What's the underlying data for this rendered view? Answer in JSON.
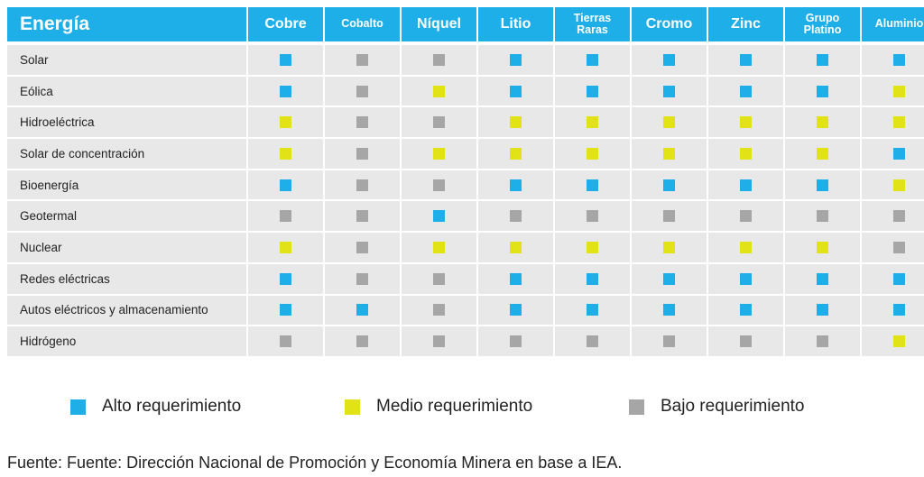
{
  "table": {
    "headers": [
      "Energía",
      "Cobre",
      "Cobalto",
      "Níquel",
      "Litio",
      "Tierras\nRaras",
      "Cromo",
      "Zinc",
      "Grupo\nPlatino",
      "Aluminio"
    ],
    "rows": [
      {
        "label": "Solar",
        "levels": [
          "alto",
          "bajo",
          "bajo",
          "alto",
          "alto",
          "alto",
          "alto",
          "alto",
          "alto"
        ]
      },
      {
        "label": "Eólica",
        "levels": [
          "alto",
          "bajo",
          "medio",
          "alto",
          "alto",
          "alto",
          "alto",
          "alto",
          "medio"
        ]
      },
      {
        "label": "Hidroeléctrica",
        "levels": [
          "medio",
          "bajo",
          "bajo",
          "medio",
          "medio",
          "medio",
          "medio",
          "medio",
          "medio"
        ]
      },
      {
        "label": "Solar de concentración",
        "levels": [
          "medio",
          "bajo",
          "medio",
          "medio",
          "medio",
          "medio",
          "medio",
          "medio",
          "alto"
        ]
      },
      {
        "label": "Bioenergía",
        "levels": [
          "alto",
          "bajo",
          "bajo",
          "alto",
          "alto",
          "alto",
          "alto",
          "alto",
          "medio"
        ]
      },
      {
        "label": "Geotermal",
        "levels": [
          "bajo",
          "bajo",
          "alto",
          "bajo",
          "bajo",
          "bajo",
          "bajo",
          "bajo",
          "bajo"
        ]
      },
      {
        "label": "Nuclear",
        "levels": [
          "medio",
          "bajo",
          "medio",
          "medio",
          "medio",
          "medio",
          "medio",
          "medio",
          "bajo"
        ]
      },
      {
        "label": "Redes eléctricas",
        "levels": [
          "alto",
          "bajo",
          "bajo",
          "alto",
          "alto",
          "alto",
          "alto",
          "alto",
          "alto"
        ]
      },
      {
        "label": "Autos eléctricos y almacenamiento",
        "levels": [
          "alto",
          "alto",
          "bajo",
          "alto",
          "alto",
          "alto",
          "alto",
          "alto",
          "alto"
        ]
      },
      {
        "label": "Hidrógeno",
        "levels": [
          "bajo",
          "bajo",
          "bajo",
          "bajo",
          "bajo",
          "bajo",
          "bajo",
          "bajo",
          "medio"
        ]
      }
    ]
  },
  "colors": {
    "alto": "#1eaee8",
    "medio": "#e1e317",
    "bajo": "#a6a6a6",
    "header_bg": "#1eaee8",
    "row_bg": "#e8e8e8"
  },
  "legend": [
    {
      "level": "alto",
      "label": "Alto requerimiento"
    },
    {
      "level": "medio",
      "label": "Medio requerimiento"
    },
    {
      "level": "bajo",
      "label": "Bajo requerimiento"
    }
  ],
  "source": "Fuente: Fuente: Dirección Nacional de Promoción y Economía Minera en base a IEA."
}
